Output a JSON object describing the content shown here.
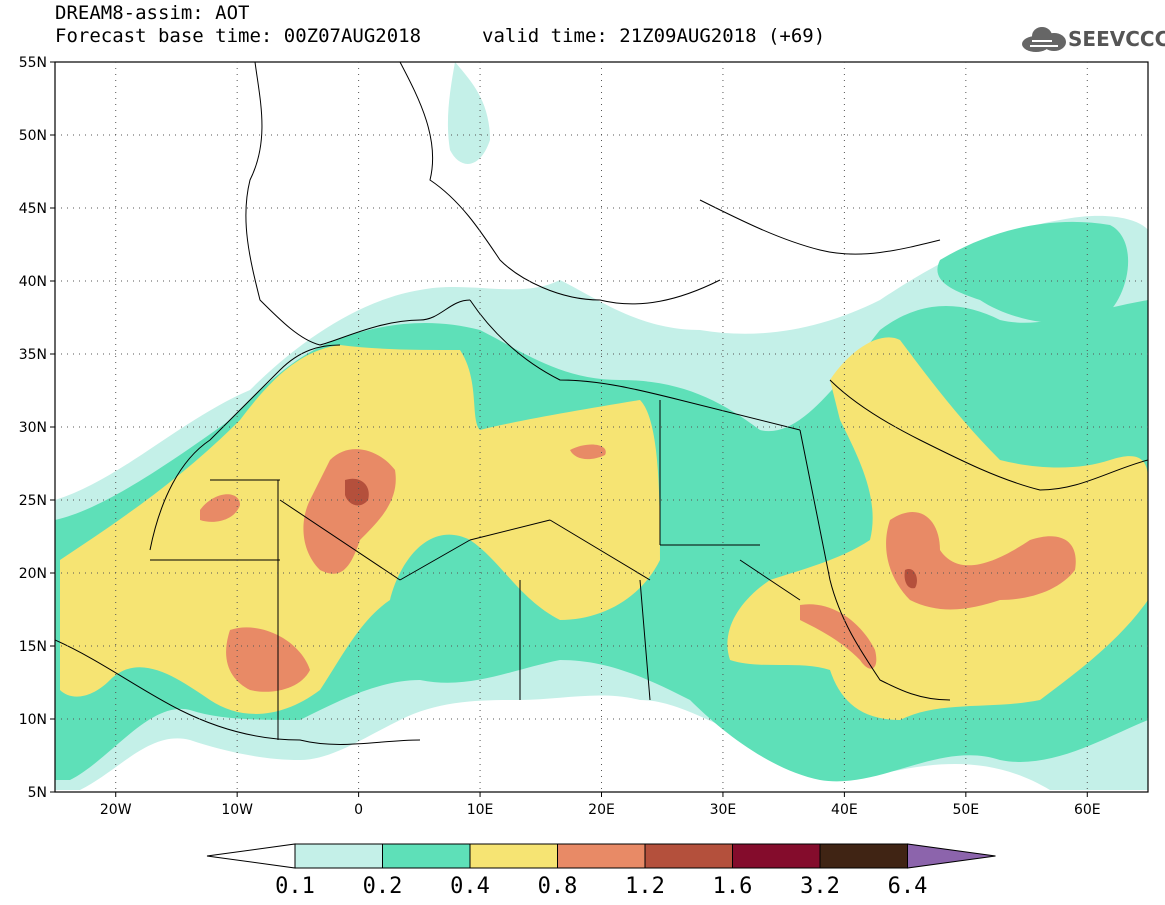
{
  "header": {
    "title_line1": "DREAM8-assim: AOT",
    "title_line2": "Forecast base time: 00Z07AUG2018",
    "valid_time": "valid time: 21Z09AUG2018 (+69)",
    "logo_text": "SEEVCCC"
  },
  "axes": {
    "lat_labels": [
      "55N",
      "50N",
      "45N",
      "40N",
      "35N",
      "30N",
      "25N",
      "20N",
      "15N",
      "10N",
      "5N"
    ],
    "lon_labels": [
      "20W",
      "10W",
      "0",
      "10E",
      "20E",
      "30E",
      "40E",
      "50E",
      "60E"
    ],
    "lon_range": [
      -25,
      65
    ],
    "lat_range": [
      5,
      55
    ]
  },
  "colorbar": {
    "levels": [
      "0.1",
      "0.2",
      "0.4",
      "0.8",
      "1.2",
      "1.6",
      "3.2",
      "6.4"
    ],
    "colors": [
      "#ffffff",
      "#c4f0e8",
      "#5ee0b8",
      "#f6e473",
      "#e88a66",
      "#b4503c",
      "#840c2c",
      "#402414",
      "#8c64ac"
    ]
  }
}
